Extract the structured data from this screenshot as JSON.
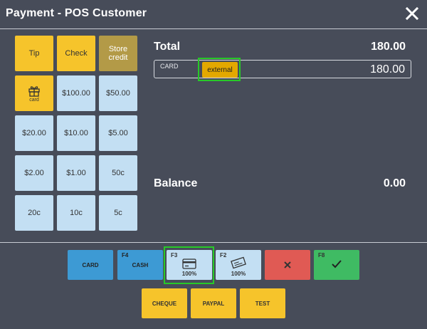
{
  "window": {
    "title": "Payment - POS Customer"
  },
  "keypad": [
    {
      "label": "Tip"
    },
    {
      "label": "Check"
    },
    {
      "label": "Store credit"
    },
    {
      "label": "card",
      "icon": "gift-icon"
    },
    {
      "label": "$100.00"
    },
    {
      "label": "$50.00"
    },
    {
      "label": "$20.00"
    },
    {
      "label": "$10.00"
    },
    {
      "label": "$5.00"
    },
    {
      "label": "$2.00"
    },
    {
      "label": "$1.00"
    },
    {
      "label": "50c"
    },
    {
      "label": "20c"
    },
    {
      "label": "10c"
    },
    {
      "label": "5c"
    }
  ],
  "summary": {
    "total_label": "Total",
    "total_value": "180.00",
    "line": {
      "method": "CARD",
      "badge": "external",
      "amount": "180.00"
    },
    "balance_label": "Balance",
    "balance_value": "0.00"
  },
  "payment_buttons": {
    "card": {
      "label": "CARD"
    },
    "cash": {
      "key": "F4",
      "label": "CASH"
    },
    "card_f3": {
      "key": "F3",
      "percent": "100%",
      "icon": "credit-card-icon"
    },
    "check_f2": {
      "key": "F2",
      "percent": "100%",
      "icon": "check-payment-icon"
    },
    "cancel": {
      "icon": "close-icon"
    },
    "confirm": {
      "key": "F8",
      "icon": "checkmark-icon"
    }
  },
  "methods": [
    {
      "label": "CHEQUE"
    },
    {
      "label": "PAYPAL"
    },
    {
      "label": "TEST"
    }
  ],
  "colors": {
    "background": "#474c59",
    "yellow": "#f6c42b",
    "olive": "#b39a47",
    "light_blue": "#c3dff3",
    "blue": "#3d9ad4",
    "red": "#e05a54",
    "green": "#3fbb63",
    "highlight": "#28c928"
  }
}
